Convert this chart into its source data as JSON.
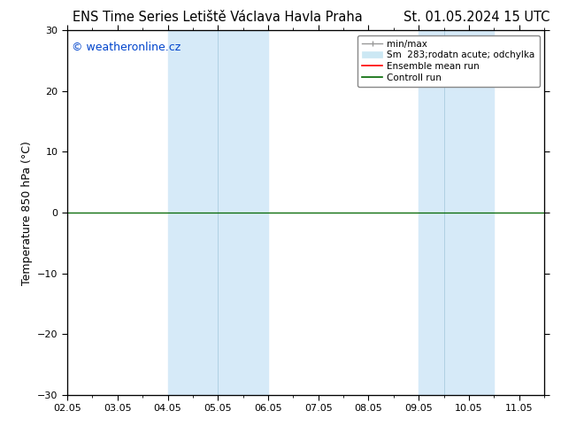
{
  "title_left": "ENS Time Series Letiště Václava Havla Praha",
  "title_right": "St. 01.05.2024 15 UTC",
  "ylabel": "Temperature 850 hPa (°C)",
  "ylim": [
    -30,
    30
  ],
  "yticks": [
    -30,
    -20,
    -10,
    0,
    10,
    20,
    30
  ],
  "xlim": [
    0,
    9.5
  ],
  "xtick_labels": [
    "02.05",
    "03.05",
    "04.05",
    "05.05",
    "06.05",
    "07.05",
    "08.05",
    "09.05",
    "10.05",
    "11.05"
  ],
  "xtick_positions": [
    0,
    1,
    2,
    3,
    4,
    5,
    6,
    7,
    8,
    9
  ],
  "watermark": "© weatheronline.cz",
  "watermark_color": "#0044cc",
  "legend_labels": [
    "min/max",
    "Sm  283;rodatn acute; odchylka",
    "Ensemble mean run",
    "Controll run"
  ],
  "legend_line_color": "#999999",
  "legend_patch_color": "#cce8f4",
  "legend_ensemble_color": "#ff0000",
  "legend_control_color": "#006600",
  "shaded_bands": [
    {
      "xmin": 2.0,
      "xmax": 2.5,
      "color": "#d6eaf8"
    },
    {
      "xmin": 2.5,
      "xmax": 4.0,
      "color": "#d6eaf8"
    },
    {
      "xmin": 7.0,
      "xmax": 7.5,
      "color": "#d6eaf8"
    },
    {
      "xmin": 7.5,
      "xmax": 8.5,
      "color": "#d6eaf8"
    }
  ],
  "control_run_color": "#006600",
  "ensemble_mean_color": "#ff0000",
  "zero_line_color": "#333333",
  "background_color": "#ffffff",
  "plot_bg_color": "#ffffff",
  "title_fontsize": 10.5,
  "axis_fontsize": 9,
  "tick_fontsize": 8,
  "watermark_fontsize": 9
}
